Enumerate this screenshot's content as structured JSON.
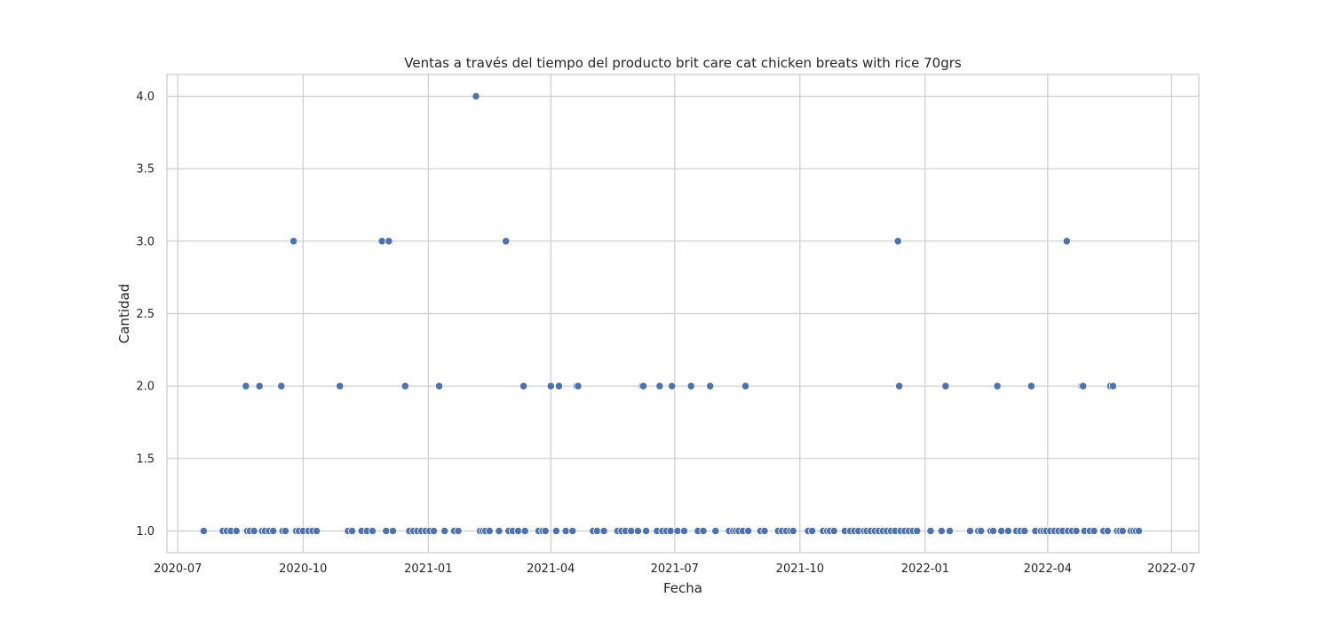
{
  "chart_data": {
    "type": "scatter",
    "title": "Ventas a través del tiempo del producto brit care cat chicken breats with rice 70grs",
    "xlabel": "Fecha",
    "ylabel": "Cantidad",
    "x_ticks": [
      "2020-07",
      "2020-10",
      "2021-01",
      "2021-04",
      "2021-07",
      "2021-10",
      "2022-01",
      "2022-04",
      "2022-07"
    ],
    "y_ticks": [
      "1.0",
      "1.5",
      "2.0",
      "2.5",
      "3.0",
      "3.5",
      "4.0"
    ],
    "ylim": [
      0.85,
      4.15
    ],
    "xlim": [
      "2020-06-23",
      "2022-07-21"
    ],
    "grid": true,
    "marker_color": "#4c72b0",
    "points": [
      [
        "2020-07-20",
        1
      ],
      [
        "2020-08-03",
        1
      ],
      [
        "2020-08-06",
        1
      ],
      [
        "2020-08-09",
        1
      ],
      [
        "2020-08-13",
        1
      ],
      [
        "2020-08-20",
        2
      ],
      [
        "2020-08-21",
        1
      ],
      [
        "2020-08-23",
        1
      ],
      [
        "2020-08-26",
        1
      ],
      [
        "2020-08-30",
        2
      ],
      [
        "2020-09-01",
        1
      ],
      [
        "2020-09-03",
        1
      ],
      [
        "2020-09-06",
        1
      ],
      [
        "2020-09-09",
        1
      ],
      [
        "2020-09-15",
        2
      ],
      [
        "2020-09-16",
        1
      ],
      [
        "2020-09-18",
        1
      ],
      [
        "2020-09-24",
        3
      ],
      [
        "2020-09-26",
        1
      ],
      [
        "2020-09-28",
        1
      ],
      [
        "2020-10-01",
        1
      ],
      [
        "2020-10-05",
        1
      ],
      [
        "2020-10-08",
        1
      ],
      [
        "2020-10-11",
        1
      ],
      [
        "2020-10-28",
        2
      ],
      [
        "2020-11-03",
        1
      ],
      [
        "2020-11-06",
        1
      ],
      [
        "2020-11-13",
        1
      ],
      [
        "2020-11-17",
        1
      ],
      [
        "2020-11-21",
        1
      ],
      [
        "2020-11-28",
        3
      ],
      [
        "2020-12-01",
        1
      ],
      [
        "2020-12-03",
        3
      ],
      [
        "2020-12-06",
        1
      ],
      [
        "2020-12-15",
        2
      ],
      [
        "2020-12-18",
        1
      ],
      [
        "2020-12-21",
        1
      ],
      [
        "2020-12-24",
        1
      ],
      [
        "2020-12-27",
        1
      ],
      [
        "2020-12-30",
        1
      ],
      [
        "2021-01-02",
        1
      ],
      [
        "2021-01-05",
        1
      ],
      [
        "2021-01-09",
        2
      ],
      [
        "2021-01-13",
        1
      ],
      [
        "2021-01-20",
        1
      ],
      [
        "2021-01-23",
        1
      ],
      [
        "2021-02-05",
        4
      ],
      [
        "2021-02-08",
        1
      ],
      [
        "2021-02-10",
        1
      ],
      [
        "2021-02-12",
        1
      ],
      [
        "2021-02-15",
        1
      ],
      [
        "2021-02-22",
        1
      ],
      [
        "2021-02-27",
        3
      ],
      [
        "2021-03-01",
        1
      ],
      [
        "2021-03-04",
        1
      ],
      [
        "2021-03-08",
        1
      ],
      [
        "2021-03-12",
        2
      ],
      [
        "2021-03-13",
        1
      ],
      [
        "2021-03-23",
        1
      ],
      [
        "2021-03-26",
        1
      ],
      [
        "2021-03-28",
        1
      ],
      [
        "2021-04-01",
        2
      ],
      [
        "2021-04-05",
        1
      ],
      [
        "2021-04-07",
        2
      ],
      [
        "2021-04-12",
        1
      ],
      [
        "2021-04-17",
        1
      ],
      [
        "2021-04-20",
        2
      ],
      [
        "2021-04-21",
        2
      ],
      [
        "2021-05-02",
        1
      ],
      [
        "2021-05-05",
        1
      ],
      [
        "2021-05-10",
        1
      ],
      [
        "2021-05-20",
        1
      ],
      [
        "2021-05-23",
        1
      ],
      [
        "2021-05-26",
        1
      ],
      [
        "2021-05-30",
        1
      ],
      [
        "2021-06-04",
        1
      ],
      [
        "2021-06-07",
        2
      ],
      [
        "2021-06-08",
        2
      ],
      [
        "2021-06-10",
        1
      ],
      [
        "2021-06-18",
        1
      ],
      [
        "2021-06-20",
        2
      ],
      [
        "2021-06-22",
        1
      ],
      [
        "2021-06-25",
        1
      ],
      [
        "2021-06-28",
        1
      ],
      [
        "2021-06-29",
        2
      ],
      [
        "2021-07-03",
        1
      ],
      [
        "2021-07-08",
        1
      ],
      [
        "2021-07-13",
        2
      ],
      [
        "2021-07-18",
        1
      ],
      [
        "2021-07-22",
        1
      ],
      [
        "2021-07-27",
        2
      ],
      [
        "2021-07-31",
        1
      ],
      [
        "2021-08-10",
        1
      ],
      [
        "2021-08-13",
        1
      ],
      [
        "2021-08-15",
        1
      ],
      [
        "2021-08-17",
        1
      ],
      [
        "2021-08-20",
        1
      ],
      [
        "2021-08-22",
        2
      ],
      [
        "2021-08-24",
        1
      ],
      [
        "2021-09-02",
        1
      ],
      [
        "2021-09-05",
        1
      ],
      [
        "2021-09-15",
        1
      ],
      [
        "2021-09-18",
        1
      ],
      [
        "2021-09-21",
        1
      ],
      [
        "2021-09-24",
        1
      ],
      [
        "2021-09-26",
        1
      ],
      [
        "2021-10-07",
        1
      ],
      [
        "2021-10-10",
        1
      ],
      [
        "2021-10-18",
        1
      ],
      [
        "2021-10-21",
        1
      ],
      [
        "2021-10-23",
        1
      ],
      [
        "2021-10-26",
        1
      ],
      [
        "2021-11-03",
        1
      ],
      [
        "2021-11-07",
        1
      ],
      [
        "2021-11-10",
        1
      ],
      [
        "2021-11-13",
        1
      ],
      [
        "2021-11-17",
        1
      ],
      [
        "2021-11-19",
        1
      ],
      [
        "2021-11-22",
        1
      ],
      [
        "2021-11-25",
        1
      ],
      [
        "2021-11-28",
        1
      ],
      [
        "2021-12-01",
        1
      ],
      [
        "2021-12-04",
        1
      ],
      [
        "2021-12-07",
        1
      ],
      [
        "2021-12-10",
        1
      ],
      [
        "2021-12-12",
        3
      ],
      [
        "2021-12-13",
        2
      ],
      [
        "2021-12-14",
        1
      ],
      [
        "2021-12-17",
        1
      ],
      [
        "2021-12-20",
        1
      ],
      [
        "2021-12-23",
        1
      ],
      [
        "2021-12-26",
        1
      ],
      [
        "2022-01-05",
        1
      ],
      [
        "2022-01-13",
        1
      ],
      [
        "2022-01-16",
        2
      ],
      [
        "2022-01-19",
        1
      ],
      [
        "2022-02-03",
        1
      ],
      [
        "2022-02-09",
        1
      ],
      [
        "2022-02-11",
        1
      ],
      [
        "2022-02-18",
        1
      ],
      [
        "2022-02-20",
        1
      ],
      [
        "2022-02-23",
        2
      ],
      [
        "2022-02-26",
        1
      ],
      [
        "2022-03-03",
        1
      ],
      [
        "2022-03-09",
        1
      ],
      [
        "2022-03-12",
        1
      ],
      [
        "2022-03-15",
        1
      ],
      [
        "2022-03-20",
        2
      ],
      [
        "2022-03-23",
        1
      ],
      [
        "2022-03-27",
        1
      ],
      [
        "2022-03-29",
        1
      ],
      [
        "2022-03-31",
        1
      ],
      [
        "2022-04-03",
        1
      ],
      [
        "2022-04-06",
        1
      ],
      [
        "2022-04-09",
        1
      ],
      [
        "2022-04-12",
        1
      ],
      [
        "2022-04-15",
        3
      ],
      [
        "2022-04-16",
        1
      ],
      [
        "2022-04-19",
        1
      ],
      [
        "2022-04-22",
        1
      ],
      [
        "2022-04-26",
        2
      ],
      [
        "2022-04-27",
        2
      ],
      [
        "2022-04-28",
        1
      ],
      [
        "2022-05-02",
        1
      ],
      [
        "2022-05-05",
        1
      ],
      [
        "2022-05-12",
        1
      ],
      [
        "2022-05-15",
        1
      ],
      [
        "2022-05-17",
        2
      ],
      [
        "2022-05-19",
        2
      ],
      [
        "2022-05-22",
        1
      ],
      [
        "2022-05-24",
        1
      ],
      [
        "2022-05-26",
        1
      ],
      [
        "2022-06-01",
        1
      ],
      [
        "2022-06-03",
        1
      ],
      [
        "2022-06-05",
        1
      ],
      [
        "2022-06-07",
        1
      ]
    ]
  }
}
